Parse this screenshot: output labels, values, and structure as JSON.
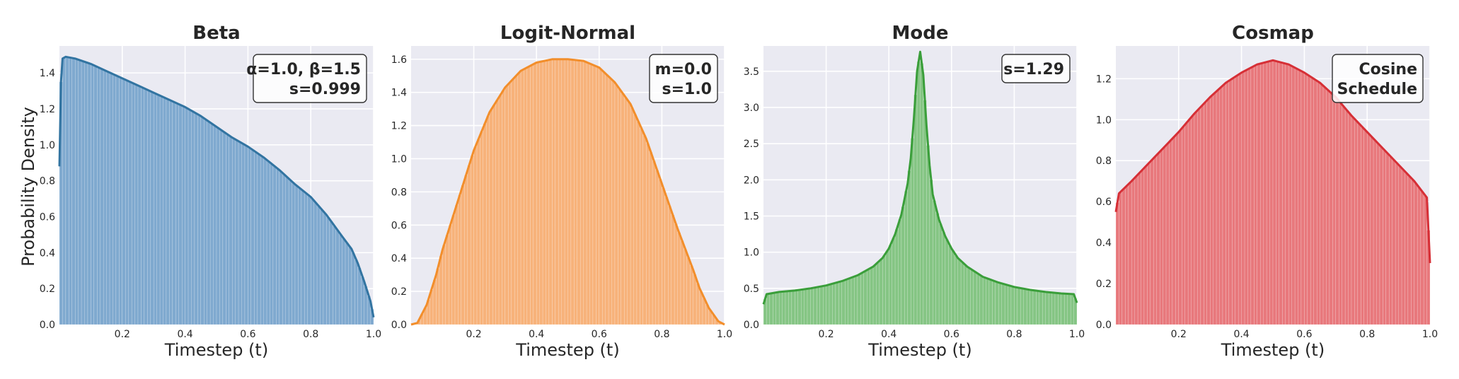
{
  "figure": {
    "ylabel": "Probability Density"
  },
  "chart_data": [
    {
      "type": "area",
      "title": "Beta",
      "annotation": [
        "α=1.0, β=1.5",
        "s=0.999"
      ],
      "xlabel": "Timestep (t)",
      "ylabel": "Probability Density",
      "xlim": [
        0,
        1
      ],
      "ylim": [
        0,
        1.55
      ],
      "xticks": [
        0.2,
        0.4,
        0.6,
        0.8,
        1.0
      ],
      "xtick_labels": [
        "0.2",
        "0.4",
        "0.6",
        "0.8",
        "1.0"
      ],
      "yticks": [
        0,
        0.2,
        0.4,
        0.6,
        0.8,
        1.0,
        1.2,
        1.4
      ],
      "ytick_labels": [
        "0.0",
        "0.2",
        "0.4",
        "0.6",
        "0.8",
        "1.0",
        "1.2",
        "1.4"
      ],
      "grid": true,
      "color": "#3274a1",
      "bar_color": "#7fa9cf",
      "x": [
        0.0,
        0.005,
        0.01,
        0.02,
        0.05,
        0.1,
        0.15,
        0.2,
        0.25,
        0.3,
        0.35,
        0.4,
        0.45,
        0.5,
        0.55,
        0.6,
        0.65,
        0.7,
        0.75,
        0.8,
        0.85,
        0.9,
        0.93,
        0.95,
        0.97,
        0.99,
        1.0
      ],
      "y": [
        0.88,
        1.35,
        1.48,
        1.49,
        1.48,
        1.45,
        1.41,
        1.37,
        1.33,
        1.29,
        1.25,
        1.21,
        1.16,
        1.1,
        1.04,
        0.99,
        0.93,
        0.86,
        0.78,
        0.71,
        0.61,
        0.49,
        0.42,
        0.34,
        0.24,
        0.13,
        0.04
      ]
    },
    {
      "type": "area",
      "title": "Logit-Normal",
      "annotation": [
        "m=0.0",
        "s=1.0"
      ],
      "xlabel": "Timestep (t)",
      "xlim": [
        0,
        1
      ],
      "ylim": [
        0,
        1.68
      ],
      "xticks": [
        0.2,
        0.4,
        0.6,
        0.8,
        1.0
      ],
      "xtick_labels": [
        "0.2",
        "0.4",
        "0.6",
        "0.8",
        "1.0"
      ],
      "yticks": [
        0,
        0.2,
        0.4,
        0.6,
        0.8,
        1.0,
        1.2,
        1.4,
        1.6
      ],
      "ytick_labels": [
        "0.0",
        "0.2",
        "0.4",
        "0.6",
        "0.8",
        "1.0",
        "1.2",
        "1.4",
        "1.6"
      ],
      "grid": true,
      "color": "#f28e2b",
      "bar_color": "#f7b27a",
      "x": [
        0.0,
        0.02,
        0.05,
        0.08,
        0.1,
        0.15,
        0.2,
        0.25,
        0.3,
        0.35,
        0.4,
        0.45,
        0.5,
        0.55,
        0.6,
        0.65,
        0.7,
        0.75,
        0.8,
        0.85,
        0.9,
        0.92,
        0.95,
        0.98,
        1.0
      ],
      "y": [
        0.0,
        0.01,
        0.12,
        0.3,
        0.45,
        0.75,
        1.05,
        1.28,
        1.43,
        1.53,
        1.58,
        1.6,
        1.6,
        1.59,
        1.55,
        1.46,
        1.33,
        1.12,
        0.85,
        0.58,
        0.33,
        0.22,
        0.1,
        0.02,
        0.0
      ]
    },
    {
      "type": "area",
      "title": "Mode",
      "annotation": [
        "s=1.29"
      ],
      "xlabel": "Timestep (t)",
      "xlim": [
        0,
        1
      ],
      "ylim": [
        0,
        3.85
      ],
      "xticks": [
        0.2,
        0.4,
        0.6,
        0.8,
        1.0
      ],
      "xtick_labels": [
        "0.2",
        "0.4",
        "0.6",
        "0.8",
        "1.0"
      ],
      "yticks": [
        0,
        0.5,
        1.0,
        1.5,
        2.0,
        2.5,
        3.0,
        3.5
      ],
      "ytick_labels": [
        "0.0",
        "0.5",
        "1.0",
        "1.5",
        "2.0",
        "2.5",
        "3.0",
        "3.5"
      ],
      "grid": true,
      "color": "#3a9e3a",
      "bar_color": "#85c584",
      "x": [
        0.0,
        0.01,
        0.05,
        0.1,
        0.15,
        0.2,
        0.25,
        0.3,
        0.35,
        0.38,
        0.4,
        0.42,
        0.44,
        0.46,
        0.47,
        0.48,
        0.49,
        0.5,
        0.51,
        0.52,
        0.53,
        0.54,
        0.56,
        0.58,
        0.6,
        0.62,
        0.65,
        0.7,
        0.75,
        0.8,
        0.85,
        0.9,
        0.95,
        0.99,
        1.0
      ],
      "y": [
        0.28,
        0.42,
        0.45,
        0.47,
        0.5,
        0.54,
        0.6,
        0.68,
        0.8,
        0.92,
        1.05,
        1.25,
        1.52,
        1.95,
        2.3,
        2.85,
        3.5,
        3.77,
        3.45,
        2.75,
        2.2,
        1.8,
        1.45,
        1.22,
        1.05,
        0.92,
        0.8,
        0.66,
        0.58,
        0.52,
        0.48,
        0.45,
        0.43,
        0.42,
        0.3
      ]
    },
    {
      "type": "area",
      "title": "Cosmap",
      "annotation": [
        "Cosine",
        "Schedule"
      ],
      "xlabel": "Timestep (t)",
      "xlim": [
        0,
        1
      ],
      "ylim": [
        0,
        1.36
      ],
      "xticks": [
        0.2,
        0.4,
        0.6,
        0.8,
        1.0
      ],
      "xtick_labels": [
        "0.2",
        "0.4",
        "0.6",
        "0.8",
        "1.0"
      ],
      "yticks": [
        0,
        0.2,
        0.4,
        0.6,
        0.8,
        1.0,
        1.2
      ],
      "ytick_labels": [
        "0.0",
        "0.2",
        "0.4",
        "0.6",
        "0.8",
        "1.0",
        "1.2"
      ],
      "grid": true,
      "color": "#d62f36",
      "bar_color": "#e8787c",
      "x": [
        0.0,
        0.01,
        0.05,
        0.1,
        0.15,
        0.2,
        0.25,
        0.3,
        0.35,
        0.4,
        0.45,
        0.5,
        0.55,
        0.6,
        0.65,
        0.7,
        0.75,
        0.8,
        0.85,
        0.9,
        0.95,
        0.99,
        1.0
      ],
      "y": [
        0.55,
        0.64,
        0.7,
        0.78,
        0.86,
        0.94,
        1.03,
        1.11,
        1.18,
        1.23,
        1.27,
        1.29,
        1.27,
        1.23,
        1.18,
        1.11,
        1.02,
        0.94,
        0.86,
        0.78,
        0.7,
        0.62,
        0.3
      ]
    }
  ]
}
